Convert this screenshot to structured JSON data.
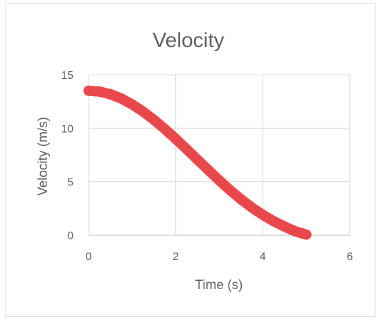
{
  "chart_data": {
    "type": "scatter",
    "title": "Velocity",
    "xlabel": "Time (s)",
    "ylabel": "Velocity (m/s)",
    "xlim": [
      0,
      6
    ],
    "ylim": [
      0,
      15
    ],
    "xticks": [
      "0",
      "2",
      "4",
      "6"
    ],
    "yticks": [
      "0",
      "5",
      "10",
      "15"
    ],
    "grid": true,
    "legend": "none",
    "series": [
      {
        "color": "#e8484b",
        "x": [
          0,
          0.25,
          0.5,
          0.75,
          1,
          1.25,
          1.5,
          1.75,
          2,
          2.25,
          2.5,
          2.75,
          3,
          3.25,
          3.5,
          3.75,
          4,
          4.25,
          4.5,
          4.75,
          5
        ],
        "y": [
          13.5,
          13.42,
          13.17,
          12.77,
          12.22,
          11.55,
          10.78,
          9.92,
          9.0,
          8.04,
          7.06,
          6.08,
          5.12,
          4.2,
          3.35,
          2.58,
          1.9,
          1.3,
          0.8,
          0.35,
          0.05
        ]
      }
    ]
  }
}
